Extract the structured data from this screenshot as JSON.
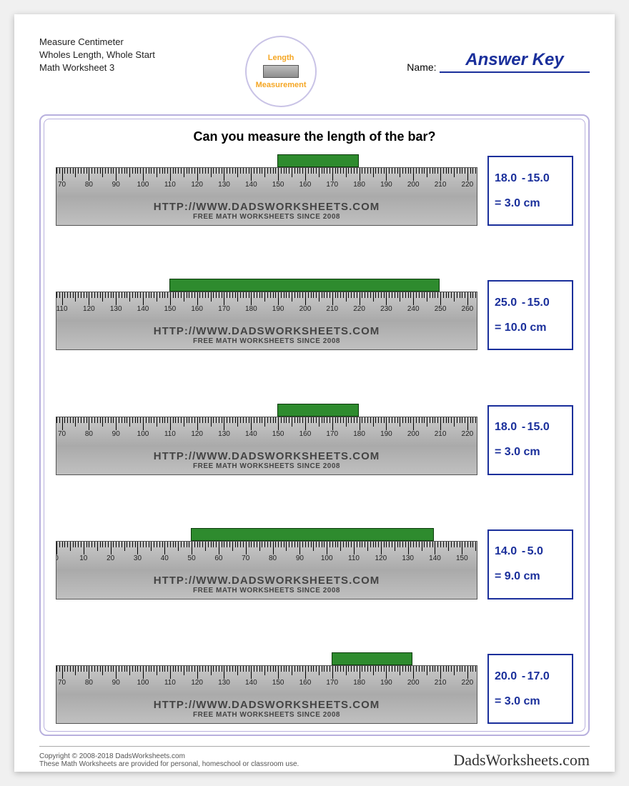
{
  "header": {
    "title_line1": "Measure Centimeter",
    "title_line2": "Wholes Length, Whole Start",
    "title_line3": "Math Worksheet 3",
    "badge_top": "Length",
    "badge_bottom": "Measurement",
    "name_label": "Name:",
    "name_value": "Answer Key"
  },
  "prompt": "Can you measure the length of the bar?",
  "ruler_url": "HTTP://WWW.DADSWORKSHEETS.COM",
  "ruler_tagline": "FREE MATH WORKSHEETS SINCE 2008",
  "colors": {
    "accent": "#1a2f9b",
    "border": "#b8b0de",
    "bar": "#2e8b2e",
    "ruler_top": "#c8c8c8",
    "ruler_bot": "#aaaaaa"
  },
  "layout": {
    "ruler_width_mm": 156,
    "tick_major_mm": 10,
    "tick_mid_mm": 5
  },
  "problems": [
    {
      "ruler_start_mm": 68,
      "bar_start_mm": 150,
      "bar_end_mm": 180,
      "a": "18.0",
      "b": "15.0",
      "result": "3.0 cm"
    },
    {
      "ruler_start_mm": 108,
      "bar_start_mm": 150,
      "bar_end_mm": 250,
      "a": "25.0",
      "b": "15.0",
      "result": "10.0 cm"
    },
    {
      "ruler_start_mm": 68,
      "bar_start_mm": 150,
      "bar_end_mm": 180,
      "a": "18.0",
      "b": "15.0",
      "result": "3.0 cm"
    },
    {
      "ruler_start_mm": 0,
      "bar_start_mm": 50,
      "bar_end_mm": 140,
      "a": "14.0",
      "b": "5.0",
      "result": "9.0 cm"
    },
    {
      "ruler_start_mm": 68,
      "bar_start_mm": 170,
      "bar_end_mm": 200,
      "a": "20.0",
      "b": "17.0",
      "result": "3.0 cm"
    }
  ],
  "footer": {
    "copyright": "Copyright © 2008-2018 DadsWorksheets.com",
    "note": "These Math Worksheets are provided for personal, homeschool or classroom use.",
    "brand": "DadsWorksheets.com"
  }
}
